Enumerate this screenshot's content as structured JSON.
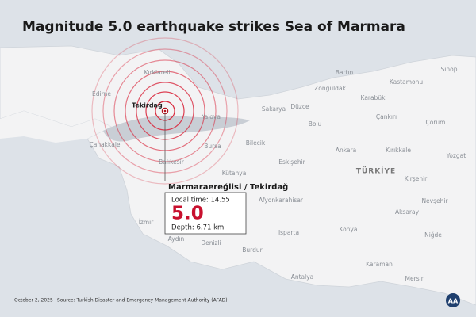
{
  "header": {
    "title": "Magnitude 5.0 earthquake strikes Sea of Marmara"
  },
  "map": {
    "labels": [
      "Bartın",
      "Sinop",
      "Kastamonu",
      "Zonguldak",
      "Karabük",
      "Kırklareli",
      "Edirne",
      "Sakarya",
      "Düzce",
      "Çankırı",
      "Çorum",
      "Bolu",
      "Yalova",
      "Çanakkale",
      "Bursa",
      "Bilecik",
      "Ankara",
      "Kırıkkale",
      "Yozgat",
      "Balıkesir",
      "Eskişehir",
      "Kütahya",
      "Kırşehir",
      "Nevşehir",
      "Afyonkarahisar",
      "Aksaray",
      "İzmir",
      "Konya",
      "Niğde",
      "Aydın",
      "Denizli",
      "Isparta",
      "Burdur",
      "Karaman",
      "Antalya",
      "Mersin"
    ],
    "country": "TÜRKİYE",
    "epicenter_label": "Tekirdağ"
  },
  "callout": {
    "location": "Marmaraereğlisi / Tekirdağ",
    "local_time": "Local time: 14.55",
    "magnitude": "5.0",
    "depth": "Depth: 6.71 km"
  },
  "footer": {
    "date": "October 2, 2025",
    "source": "Source: Turkish Disaster and Emergency Management Authority (AFAD)",
    "logo": "AA"
  }
}
